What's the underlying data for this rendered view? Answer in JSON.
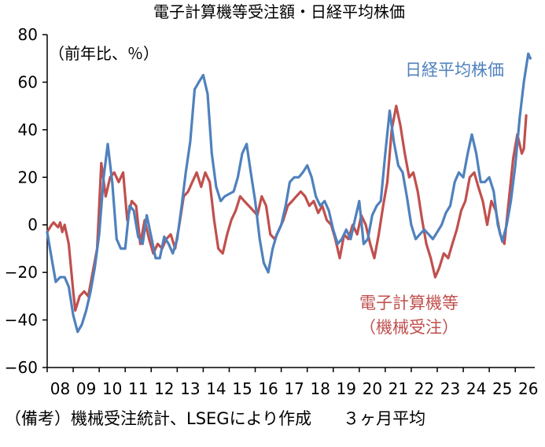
{
  "chart_data": {
    "type": "line",
    "title": "電子計算機等受注額・日経平均株価",
    "unit_label": "（前年比、％）",
    "ylim": [
      -60,
      80
    ],
    "y_ticks": [
      80,
      60,
      40,
      20,
      0,
      -20,
      -40,
      -60
    ],
    "y_tick_labels": [
      "80",
      "60",
      "40",
      "20",
      "0",
      "−20",
      "−40",
      "−60"
    ],
    "x_start_year": 2008,
    "x_end_year": 2026.75,
    "x_tick_labels": [
      "08",
      "09",
      "10",
      "11",
      "12",
      "13",
      "14",
      "15",
      "16",
      "17",
      "18",
      "19",
      "20",
      "21",
      "22",
      "23",
      "24",
      "25",
      "26"
    ],
    "grid": false,
    "series": [
      {
        "name": "日経平均株価",
        "label_lines": [
          "日経平均株価"
        ],
        "color": "#4F81BD",
        "points": [
          [
            2008.0,
            -3
          ],
          [
            2008.17,
            -14
          ],
          [
            2008.33,
            -24
          ],
          [
            2008.5,
            -22
          ],
          [
            2008.67,
            -22
          ],
          [
            2008.83,
            -26
          ],
          [
            2009.0,
            -38
          ],
          [
            2009.17,
            -45
          ],
          [
            2009.33,
            -42
          ],
          [
            2009.5,
            -36
          ],
          [
            2009.67,
            -28
          ],
          [
            2009.83,
            -18
          ],
          [
            2010.0,
            -4
          ],
          [
            2010.17,
            20
          ],
          [
            2010.33,
            34
          ],
          [
            2010.5,
            18
          ],
          [
            2010.67,
            -6
          ],
          [
            2010.83,
            -10
          ],
          [
            2011.0,
            -10
          ],
          [
            2011.17,
            8
          ],
          [
            2011.33,
            6
          ],
          [
            2011.5,
            -5
          ],
          [
            2011.67,
            -8
          ],
          [
            2011.83,
            4
          ],
          [
            2012.0,
            -5
          ],
          [
            2012.17,
            -14
          ],
          [
            2012.33,
            -14
          ],
          [
            2012.5,
            -5
          ],
          [
            2012.67,
            -8
          ],
          [
            2012.83,
            -12
          ],
          [
            2013.0,
            -6
          ],
          [
            2013.17,
            8
          ],
          [
            2013.33,
            22
          ],
          [
            2013.5,
            35
          ],
          [
            2013.67,
            57
          ],
          [
            2013.83,
            60
          ],
          [
            2014.0,
            63
          ],
          [
            2014.17,
            55
          ],
          [
            2014.33,
            30
          ],
          [
            2014.5,
            16
          ],
          [
            2014.67,
            10
          ],
          [
            2014.83,
            12
          ],
          [
            2015.0,
            13
          ],
          [
            2015.17,
            14
          ],
          [
            2015.33,
            20
          ],
          [
            2015.5,
            30
          ],
          [
            2015.67,
            34
          ],
          [
            2015.83,
            22
          ],
          [
            2016.0,
            10
          ],
          [
            2016.17,
            -6
          ],
          [
            2016.33,
            -16
          ],
          [
            2016.5,
            -20
          ],
          [
            2016.67,
            -10
          ],
          [
            2016.83,
            -4
          ],
          [
            2017.0,
            0
          ],
          [
            2017.17,
            8
          ],
          [
            2017.33,
            18
          ],
          [
            2017.5,
            20
          ],
          [
            2017.67,
            20
          ],
          [
            2017.83,
            22
          ],
          [
            2018.0,
            25
          ],
          [
            2018.17,
            20
          ],
          [
            2018.33,
            12
          ],
          [
            2018.5,
            8
          ],
          [
            2018.67,
            10
          ],
          [
            2018.83,
            6
          ],
          [
            2019.0,
            -2
          ],
          [
            2019.17,
            -8
          ],
          [
            2019.33,
            -6
          ],
          [
            2019.5,
            -2
          ],
          [
            2019.67,
            -6
          ],
          [
            2019.83,
            2
          ],
          [
            2020.0,
            10
          ],
          [
            2020.17,
            -8
          ],
          [
            2020.33,
            -6
          ],
          [
            2020.5,
            4
          ],
          [
            2020.67,
            8
          ],
          [
            2020.83,
            10
          ],
          [
            2021.0,
            30
          ],
          [
            2021.17,
            48
          ],
          [
            2021.33,
            35
          ],
          [
            2021.5,
            25
          ],
          [
            2021.67,
            22
          ],
          [
            2021.83,
            12
          ],
          [
            2022.0,
            0
          ],
          [
            2022.17,
            -6
          ],
          [
            2022.33,
            -4
          ],
          [
            2022.5,
            -2
          ],
          [
            2022.67,
            -4
          ],
          [
            2022.83,
            -6
          ],
          [
            2023.0,
            -3
          ],
          [
            2023.17,
            0
          ],
          [
            2023.33,
            5
          ],
          [
            2023.5,
            8
          ],
          [
            2023.67,
            18
          ],
          [
            2023.83,
            22
          ],
          [
            2024.0,
            20
          ],
          [
            2024.17,
            30
          ],
          [
            2024.33,
            38
          ],
          [
            2024.5,
            30
          ],
          [
            2024.67,
            18
          ],
          [
            2024.83,
            18
          ],
          [
            2025.0,
            20
          ],
          [
            2025.17,
            14
          ],
          [
            2025.33,
            0
          ],
          [
            2025.5,
            -7
          ],
          [
            2025.67,
            0
          ],
          [
            2025.83,
            10
          ],
          [
            2026.0,
            25
          ],
          [
            2026.17,
            45
          ],
          [
            2026.33,
            60
          ],
          [
            2026.5,
            72
          ],
          [
            2026.58,
            70
          ]
        ]
      },
      {
        "name": "電子計算機等（機械受注）",
        "label_lines": [
          "電子計算機等",
          "（機械受注）"
        ],
        "color": "#C0504D",
        "points": [
          [
            2008.0,
            -3
          ],
          [
            2008.17,
            0
          ],
          [
            2008.25,
            1
          ],
          [
            2008.33,
            0
          ],
          [
            2008.42,
            -1
          ],
          [
            2008.5,
            1
          ],
          [
            2008.58,
            -3
          ],
          [
            2008.67,
            0
          ],
          [
            2008.83,
            -8
          ],
          [
            2009.0,
            -28
          ],
          [
            2009.08,
            -36
          ],
          [
            2009.25,
            -30
          ],
          [
            2009.42,
            -28
          ],
          [
            2009.58,
            -30
          ],
          [
            2009.75,
            -20
          ],
          [
            2009.92,
            -10
          ],
          [
            2010.08,
            26
          ],
          [
            2010.25,
            12
          ],
          [
            2010.42,
            20
          ],
          [
            2010.58,
            22
          ],
          [
            2010.75,
            18
          ],
          [
            2010.92,
            22
          ],
          [
            2011.08,
            2
          ],
          [
            2011.25,
            10
          ],
          [
            2011.42,
            8
          ],
          [
            2011.58,
            -8
          ],
          [
            2011.75,
            2
          ],
          [
            2011.92,
            -6
          ],
          [
            2012.08,
            -12
          ],
          [
            2012.25,
            -8
          ],
          [
            2012.42,
            -10
          ],
          [
            2012.58,
            -6
          ],
          [
            2012.75,
            -4
          ],
          [
            2012.92,
            -10
          ],
          [
            2013.08,
            0
          ],
          [
            2013.25,
            12
          ],
          [
            2013.42,
            14
          ],
          [
            2013.58,
            18
          ],
          [
            2013.75,
            22
          ],
          [
            2013.92,
            16
          ],
          [
            2014.08,
            22
          ],
          [
            2014.25,
            18
          ],
          [
            2014.42,
            2
          ],
          [
            2014.58,
            -10
          ],
          [
            2014.75,
            -12
          ],
          [
            2014.92,
            -4
          ],
          [
            2015.08,
            2
          ],
          [
            2015.25,
            6
          ],
          [
            2015.42,
            12
          ],
          [
            2015.58,
            10
          ],
          [
            2015.75,
            8
          ],
          [
            2015.92,
            6
          ],
          [
            2016.08,
            4
          ],
          [
            2016.25,
            12
          ],
          [
            2016.42,
            8
          ],
          [
            2016.58,
            -4
          ],
          [
            2016.75,
            -6
          ],
          [
            2016.92,
            -2
          ],
          [
            2017.08,
            2
          ],
          [
            2017.25,
            8
          ],
          [
            2017.42,
            10
          ],
          [
            2017.58,
            12
          ],
          [
            2017.75,
            14
          ],
          [
            2017.92,
            12
          ],
          [
            2018.08,
            8
          ],
          [
            2018.25,
            10
          ],
          [
            2018.42,
            5
          ],
          [
            2018.58,
            8
          ],
          [
            2018.75,
            2
          ],
          [
            2018.92,
            0
          ],
          [
            2019.08,
            -6
          ],
          [
            2019.25,
            -14
          ],
          [
            2019.42,
            -4
          ],
          [
            2019.58,
            -6
          ],
          [
            2019.75,
            0
          ],
          [
            2019.92,
            -4
          ],
          [
            2020.08,
            4
          ],
          [
            2020.25,
            0
          ],
          [
            2020.42,
            -8
          ],
          [
            2020.58,
            -14
          ],
          [
            2020.75,
            -4
          ],
          [
            2020.92,
            8
          ],
          [
            2021.08,
            18
          ],
          [
            2021.25,
            40
          ],
          [
            2021.42,
            50
          ],
          [
            2021.58,
            42
          ],
          [
            2021.75,
            30
          ],
          [
            2021.92,
            20
          ],
          [
            2022.08,
            22
          ],
          [
            2022.25,
            14
          ],
          [
            2022.42,
            2
          ],
          [
            2022.58,
            -8
          ],
          [
            2022.75,
            -14
          ],
          [
            2022.92,
            -22
          ],
          [
            2023.08,
            -18
          ],
          [
            2023.25,
            -12
          ],
          [
            2023.42,
            -14
          ],
          [
            2023.58,
            -8
          ],
          [
            2023.75,
            -2
          ],
          [
            2023.92,
            6
          ],
          [
            2024.08,
            10
          ],
          [
            2024.25,
            20
          ],
          [
            2024.42,
            22
          ],
          [
            2024.58,
            16
          ],
          [
            2024.75,
            10
          ],
          [
            2024.92,
            0
          ],
          [
            2025.08,
            10
          ],
          [
            2025.25,
            6
          ],
          [
            2025.42,
            -4
          ],
          [
            2025.58,
            -8
          ],
          [
            2025.75,
            10
          ],
          [
            2025.92,
            28
          ],
          [
            2026.08,
            38
          ],
          [
            2026.25,
            30
          ],
          [
            2026.33,
            32
          ],
          [
            2026.42,
            46
          ]
        ]
      }
    ]
  },
  "footer": {
    "source_note": "（備考）機械受注統計、LSEGにより作成",
    "average_note": "３ヶ月平均"
  }
}
